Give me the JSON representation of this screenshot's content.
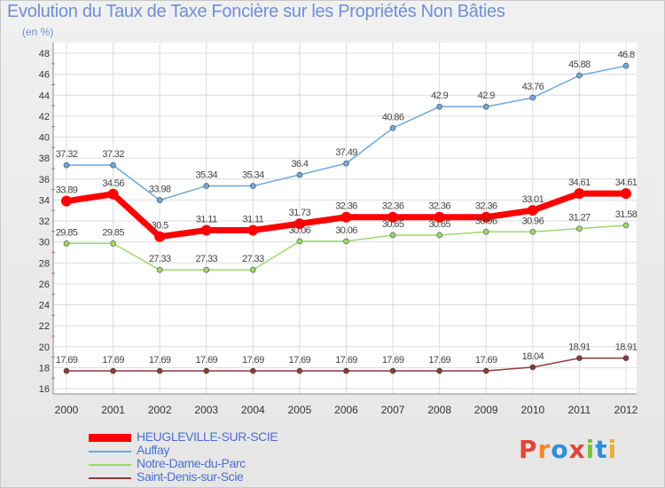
{
  "header": {
    "title": "Evolution du Taux de Taxe Foncière sur les Propriétés Non Bâties",
    "unit": "(en %)"
  },
  "logo": {
    "text": "Proxiti",
    "letter_colors": [
      "#e0453a",
      "#f08a2a",
      "#2f8fd8",
      "#e0453a",
      "#7cc242",
      "#2f8fd8",
      "#f0b02a"
    ]
  },
  "chart_data": {
    "type": "line",
    "title": "Evolution du Taux de Taxe Foncière sur les Propriétés Non Bâties",
    "ylabel": "(en %)",
    "xlabel": "",
    "x": [
      "2000",
      "2001",
      "2002",
      "2003",
      "2004",
      "2005",
      "2006",
      "2007",
      "2008",
      "2009",
      "2010",
      "2011",
      "2012"
    ],
    "ylim": [
      16,
      48
    ],
    "yticks": [
      16,
      18,
      20,
      22,
      24,
      26,
      28,
      30,
      32,
      34,
      36,
      38,
      40,
      42,
      44,
      46,
      48
    ],
    "grid": true,
    "legend_position": "bottom-left",
    "series": [
      {
        "name": "HEUGLEVILLE-SUR-SCIE",
        "color": "#ff0000",
        "emphasis": true,
        "values": [
          33.89,
          34.56,
          30.5,
          31.11,
          31.11,
          31.73,
          32.36,
          32.36,
          32.36,
          32.36,
          33.01,
          34.61,
          34.61
        ],
        "labels": [
          "33.89",
          "34.56",
          "30.5",
          "31.11",
          "31.11",
          "31.73",
          "32.36",
          "32.36",
          "32.36",
          "32.36",
          "33.01",
          "34.61",
          "34.61"
        ]
      },
      {
        "name": "Auffay",
        "color": "#6fa8dc",
        "emphasis": false,
        "values": [
          37.32,
          37.32,
          33.98,
          35.34,
          35.34,
          36.4,
          37.49,
          40.86,
          42.9,
          42.9,
          43.76,
          45.88,
          46.8
        ],
        "labels": [
          "37.32",
          "37.32",
          "33.98",
          "35.34",
          "35.34",
          "36.4",
          "37.49",
          "40.86",
          "42.9",
          "42.9",
          "43.76",
          "45.88",
          "46.8"
        ]
      },
      {
        "name": "Notre-Dame-du-Parc",
        "color": "#9dd96a",
        "emphasis": false,
        "values": [
          29.85,
          29.85,
          27.33,
          27.33,
          27.33,
          30.06,
          30.06,
          30.65,
          30.65,
          30.96,
          30.96,
          31.27,
          31.58
        ],
        "labels": [
          "29.85",
          "29.85",
          "27.33",
          "27.33",
          "27.33",
          "30.06",
          "30.06",
          "30.65",
          "30.65",
          "30.96",
          "30.96",
          "31.27",
          "31.58"
        ]
      },
      {
        "name": "Saint-Denis-sur-Scie",
        "color": "#8b3a3a",
        "emphasis": false,
        "values": [
          17.69,
          17.69,
          17.69,
          17.69,
          17.69,
          17.69,
          17.69,
          17.69,
          17.69,
          17.69,
          18.04,
          18.91,
          18.91
        ],
        "labels": [
          "17.69",
          "17.69",
          "17.69",
          "17.69",
          "17.69",
          "17.69",
          "17.69",
          "17.69",
          "17.69",
          "17.69",
          "18.04",
          "18.91",
          "18.91"
        ]
      }
    ]
  }
}
